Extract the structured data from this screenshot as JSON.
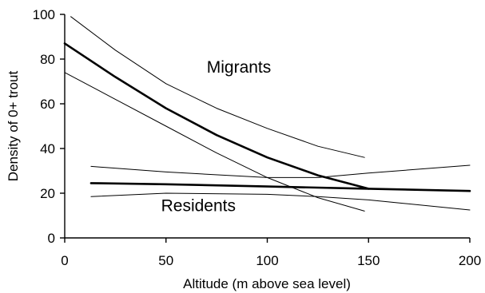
{
  "chart_data": {
    "type": "line",
    "title": "",
    "xlabel": "Altitude (m above sea level)",
    "ylabel": "Density of 0+ trout",
    "xlim": [
      0,
      200
    ],
    "ylim": [
      0,
      100
    ],
    "x_ticks": [
      0,
      50,
      100,
      150,
      200
    ],
    "y_ticks": [
      0,
      20,
      40,
      60,
      80,
      100
    ],
    "grid": false,
    "legend": "none",
    "colors": {
      "axis": "#000000",
      "line": "#000000"
    },
    "series": [
      {
        "name": "Migrants",
        "role": "estimate",
        "x": [
          0,
          25,
          50,
          75,
          100,
          125,
          150
        ],
        "y": [
          87,
          72,
          58,
          46,
          36,
          28,
          22
        ]
      },
      {
        "role": "upper",
        "x": [
          3,
          25,
          50,
          75,
          100,
          125,
          148
        ],
        "y": [
          99,
          84,
          69,
          58,
          49,
          41,
          36
        ]
      },
      {
        "role": "lower",
        "x": [
          0,
          25,
          50,
          75,
          100,
          125,
          148
        ],
        "y": [
          74,
          62,
          50,
          38,
          27,
          18,
          12
        ]
      },
      {
        "name": "Residents",
        "role": "estimate",
        "x": [
          13,
          50,
          100,
          150,
          200
        ],
        "y": [
          24.5,
          24,
          23,
          22,
          21
        ]
      },
      {
        "role": "upper",
        "x": [
          13,
          50,
          100,
          125,
          150,
          200
        ],
        "y": [
          32,
          29.5,
          27,
          27,
          29,
          32.5
        ]
      },
      {
        "role": "lower",
        "x": [
          13,
          50,
          100,
          125,
          150,
          200
        ],
        "y": [
          18.5,
          20,
          19.5,
          18.5,
          17,
          12.5
        ]
      }
    ],
    "annotations": [
      {
        "text": "Migrants",
        "x": 86,
        "y": 74
      },
      {
        "text": "Residents",
        "x": 66,
        "y": 12
      }
    ]
  }
}
